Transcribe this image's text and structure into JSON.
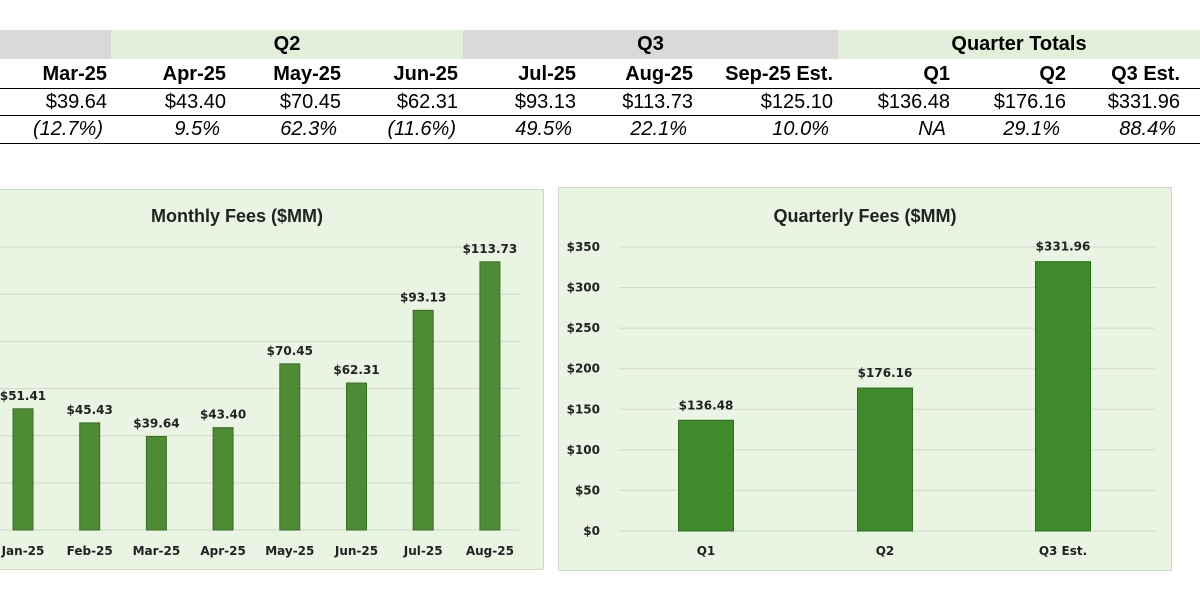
{
  "table": {
    "groups": {
      "q2": "Q2",
      "q3": "Q3",
      "totals": "Quarter Totals"
    },
    "headers": [
      "Mar-25",
      "Apr-25",
      "May-25",
      "Jun-25",
      "Jul-25",
      "Aug-25",
      "Sep-25 Est.",
      "Q1",
      "Q2",
      "Q3 Est."
    ],
    "values": [
      "$39.64",
      "$43.40",
      "$70.45",
      "$62.31",
      "$93.13",
      "$113.73",
      "$125.10",
      "$136.48",
      "$176.16",
      "$331.96"
    ],
    "growth": [
      "(12.7%)",
      "9.5%",
      "62.3%",
      "(11.6%)",
      "49.5%",
      "22.1%",
      "10.0%",
      "NA",
      "29.1%",
      "88.4%"
    ]
  },
  "colors": {
    "bar": "#4f8a34",
    "panel": "#e9f4e3",
    "header_grey": "#d9d9d9",
    "header_green": "#e2efda"
  },
  "chart_data": [
    {
      "type": "bar",
      "title": "Monthly Fees ($MM)",
      "categories": [
        "Jan-25",
        "Feb-25",
        "Mar-25",
        "Apr-25",
        "May-25",
        "Jun-25",
        "Jul-25",
        "Aug-25"
      ],
      "values": [
        51.41,
        45.43,
        39.64,
        43.4,
        70.45,
        62.31,
        93.13,
        113.73
      ],
      "data_labels": [
        "$51.41",
        "$45.43",
        "$39.64",
        "$43.40",
        "$70.45",
        "$62.31",
        "$93.13",
        "$113.73"
      ],
      "ylim": [
        0,
        120
      ]
    },
    {
      "type": "bar",
      "title": "Quarterly Fees ($MM)",
      "categories": [
        "Q1",
        "Q2",
        "Q3 Est."
      ],
      "values": [
        136.48,
        176.16,
        331.96
      ],
      "data_labels": [
        "$136.48",
        "$176.16",
        "$331.96"
      ],
      "yticks": [
        "$0",
        "$50",
        "$100",
        "$150",
        "$200",
        "$250",
        "$300",
        "$350"
      ],
      "ylim": [
        0,
        350
      ]
    }
  ]
}
